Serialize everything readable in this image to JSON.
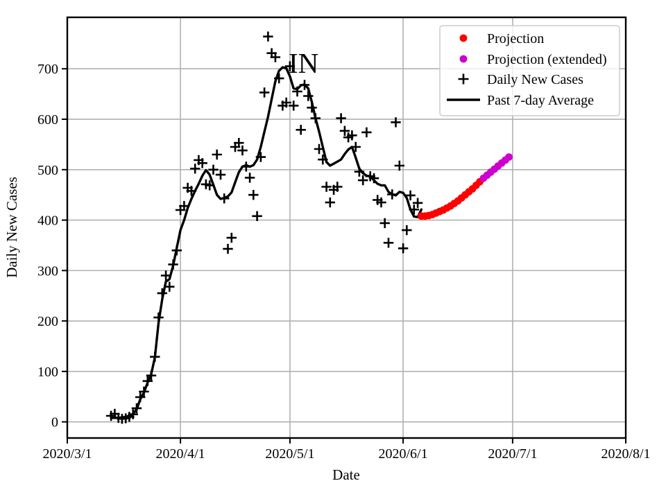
{
  "chart_data": {
    "type": "scatter",
    "annotation": {
      "text": "IN",
      "anchor_date": "2020/5/1",
      "anchor_value": 710
    },
    "xlabel": "Date",
    "ylabel": "Daily New Cases",
    "x_tick_labels": [
      "2020/3/1",
      "2020/4/1",
      "2020/5/1",
      "2020/6/1",
      "2020/7/1",
      "2020/8/1"
    ],
    "y_tick_labels": [
      "0",
      "100",
      "200",
      "300",
      "400",
      "500",
      "600",
      "700"
    ],
    "y_ticks": [
      0,
      100,
      200,
      300,
      400,
      500,
      600,
      700
    ],
    "xlim": [
      "2020/3/1",
      "2020/8/1"
    ],
    "ylim": [
      -32,
      802
    ],
    "grid": true,
    "grid_color": "#b0b0b0",
    "legend_position": "upper right",
    "series": [
      {
        "name": "Projection",
        "marker": "dot",
        "color": "#ff0000",
        "points": [
          [
            "2020/6/6",
            408
          ],
          [
            "2020/6/7",
            408
          ],
          [
            "2020/6/8",
            409
          ],
          [
            "2020/6/9",
            411
          ],
          [
            "2020/6/10",
            414
          ],
          [
            "2020/6/11",
            417
          ],
          [
            "2020/6/12",
            420
          ],
          [
            "2020/6/13",
            424
          ],
          [
            "2020/6/14",
            428
          ],
          [
            "2020/6/15",
            433
          ],
          [
            "2020/6/16",
            438
          ],
          [
            "2020/6/17",
            444
          ],
          [
            "2020/6/18",
            450
          ],
          [
            "2020/6/19",
            456
          ],
          [
            "2020/6/20",
            462
          ],
          [
            "2020/6/21",
            469
          ],
          [
            "2020/6/22",
            476
          ]
        ]
      },
      {
        "name": "Projection (extended)",
        "marker": "dot",
        "color": "#cc00cc",
        "points": [
          [
            "2020/6/23",
            483
          ],
          [
            "2020/6/24",
            489
          ],
          [
            "2020/6/25",
            495
          ],
          [
            "2020/6/26",
            501
          ],
          [
            "2020/6/27",
            507
          ],
          [
            "2020/6/28",
            513
          ],
          [
            "2020/6/29",
            519
          ],
          [
            "2020/6/30",
            525
          ]
        ]
      },
      {
        "name": "Daily New Cases",
        "marker": "plus",
        "color": "#000000",
        "points": [
          [
            "2020/3/13",
            12
          ],
          [
            "2020/3/14",
            16
          ],
          [
            "2020/3/15",
            8
          ],
          [
            "2020/3/16",
            6
          ],
          [
            "2020/3/17",
            7
          ],
          [
            "2020/3/18",
            10
          ],
          [
            "2020/3/19",
            15
          ],
          [
            "2020/3/20",
            27
          ],
          [
            "2020/3/21",
            49
          ],
          [
            "2020/3/22",
            60
          ],
          [
            "2020/3/23",
            81
          ],
          [
            "2020/3/24",
            92
          ],
          [
            "2020/3/25",
            129
          ],
          [
            "2020/3/26",
            207
          ],
          [
            "2020/3/27",
            255
          ],
          [
            "2020/3/28",
            290
          ],
          [
            "2020/3/29",
            268
          ],
          [
            "2020/3/30",
            312
          ],
          [
            "2020/3/31",
            340
          ],
          [
            "2020/4/1",
            420
          ],
          [
            "2020/4/2",
            428
          ],
          [
            "2020/4/3",
            464
          ],
          [
            "2020/4/4",
            458
          ],
          [
            "2020/4/5",
            502
          ],
          [
            "2020/4/6",
            519
          ],
          [
            "2020/4/7",
            513
          ],
          [
            "2020/4/8",
            471
          ],
          [
            "2020/4/9",
            469
          ],
          [
            "2020/4/10",
            500
          ],
          [
            "2020/4/11",
            530
          ],
          [
            "2020/4/12",
            490
          ],
          [
            "2020/4/13",
            443
          ],
          [
            "2020/4/14",
            343
          ],
          [
            "2020/4/15",
            365
          ],
          [
            "2020/4/16",
            545
          ],
          [
            "2020/4/17",
            553
          ],
          [
            "2020/4/18",
            538
          ],
          [
            "2020/4/19",
            506
          ],
          [
            "2020/4/20",
            484
          ],
          [
            "2020/4/21",
            450
          ],
          [
            "2020/4/22",
            408
          ],
          [
            "2020/4/23",
            525
          ],
          [
            "2020/4/24",
            653
          ],
          [
            "2020/4/25",
            764
          ],
          [
            "2020/4/26",
            731
          ],
          [
            "2020/4/27",
            723
          ],
          [
            "2020/4/28",
            681
          ],
          [
            "2020/4/29",
            627
          ],
          [
            "2020/4/30",
            633
          ],
          [
            "2020/5/1",
            705
          ],
          [
            "2020/5/2",
            627
          ],
          [
            "2020/5/3",
            655
          ],
          [
            "2020/5/4",
            579
          ],
          [
            "2020/5/5",
            668
          ],
          [
            "2020/5/6",
            646
          ],
          [
            "2020/5/7",
            623
          ],
          [
            "2020/5/8",
            602
          ],
          [
            "2020/5/9",
            541
          ],
          [
            "2020/5/10",
            520
          ],
          [
            "2020/5/11",
            466
          ],
          [
            "2020/5/12",
            435
          ],
          [
            "2020/5/13",
            460
          ],
          [
            "2020/5/14",
            466
          ],
          [
            "2020/5/15",
            602
          ],
          [
            "2020/5/16",
            577
          ],
          [
            "2020/5/17",
            564
          ],
          [
            "2020/5/18",
            568
          ],
          [
            "2020/5/19",
            545
          ],
          [
            "2020/5/20",
            496
          ],
          [
            "2020/5/21",
            479
          ],
          [
            "2020/5/22",
            574
          ],
          [
            "2020/5/23",
            487
          ],
          [
            "2020/5/24",
            483
          ],
          [
            "2020/5/25",
            440
          ],
          [
            "2020/5/26",
            435
          ],
          [
            "2020/5/27",
            394
          ],
          [
            "2020/5/28",
            355
          ],
          [
            "2020/5/29",
            451
          ],
          [
            "2020/5/30",
            594
          ],
          [
            "2020/5/31",
            508
          ],
          [
            "2020/6/1",
            344
          ],
          [
            "2020/6/2",
            380
          ],
          [
            "2020/6/3",
            449
          ],
          [
            "2020/6/4",
            421
          ],
          [
            "2020/6/5",
            434
          ]
        ]
      },
      {
        "name": "Past 7-day Average",
        "marker": "line",
        "color": "#000000",
        "points": [
          [
            "2020/3/13",
            8
          ],
          [
            "2020/3/14",
            8
          ],
          [
            "2020/3/15",
            8
          ],
          [
            "2020/3/16",
            9
          ],
          [
            "2020/3/17",
            10
          ],
          [
            "2020/3/18",
            12
          ],
          [
            "2020/3/19",
            16
          ],
          [
            "2020/3/20",
            25
          ],
          [
            "2020/3/21",
            45
          ],
          [
            "2020/3/22",
            58
          ],
          [
            "2020/3/23",
            78
          ],
          [
            "2020/3/24",
            95
          ],
          [
            "2020/3/25",
            128
          ],
          [
            "2020/3/26",
            196
          ],
          [
            "2020/3/27",
            243
          ],
          [
            "2020/3/28",
            278
          ],
          [
            "2020/3/29",
            283
          ],
          [
            "2020/3/30",
            310
          ],
          [
            "2020/3/31",
            345
          ],
          [
            "2020/4/1",
            380
          ],
          [
            "2020/4/2",
            400
          ],
          [
            "2020/4/3",
            424
          ],
          [
            "2020/4/4",
            442
          ],
          [
            "2020/4/5",
            458
          ],
          [
            "2020/4/6",
            472
          ],
          [
            "2020/4/7",
            488
          ],
          [
            "2020/4/8",
            499
          ],
          [
            "2020/4/9",
            490
          ],
          [
            "2020/4/10",
            470
          ],
          [
            "2020/4/11",
            450
          ],
          [
            "2020/4/12",
            442
          ],
          [
            "2020/4/13",
            444
          ],
          [
            "2020/4/14",
            447
          ],
          [
            "2020/4/15",
            455
          ],
          [
            "2020/4/16",
            475
          ],
          [
            "2020/4/17",
            495
          ],
          [
            "2020/4/18",
            506
          ],
          [
            "2020/4/19",
            509
          ],
          [
            "2020/4/20",
            506
          ],
          [
            "2020/4/21",
            509
          ],
          [
            "2020/4/22",
            520
          ],
          [
            "2020/4/23",
            545
          ],
          [
            "2020/4/24",
            575
          ],
          [
            "2020/4/25",
            605
          ],
          [
            "2020/4/26",
            640
          ],
          [
            "2020/4/27",
            675
          ],
          [
            "2020/4/28",
            696
          ],
          [
            "2020/4/29",
            703
          ],
          [
            "2020/4/30",
            701
          ],
          [
            "2020/5/1",
            685
          ],
          [
            "2020/5/2",
            661
          ],
          [
            "2020/5/3",
            660
          ],
          [
            "2020/5/4",
            667
          ],
          [
            "2020/5/5",
            669
          ],
          [
            "2020/5/6",
            661
          ],
          [
            "2020/5/7",
            634
          ],
          [
            "2020/5/8",
            602
          ],
          [
            "2020/5/9",
            575
          ],
          [
            "2020/5/10",
            545
          ],
          [
            "2020/5/11",
            515
          ],
          [
            "2020/5/12",
            508
          ],
          [
            "2020/5/13",
            512
          ],
          [
            "2020/5/14",
            516
          ],
          [
            "2020/5/15",
            520
          ],
          [
            "2020/5/16",
            531
          ],
          [
            "2020/5/17",
            540
          ],
          [
            "2020/5/18",
            545
          ],
          [
            "2020/5/19",
            524
          ],
          [
            "2020/5/20",
            502
          ],
          [
            "2020/5/21",
            493
          ],
          [
            "2020/5/22",
            488
          ],
          [
            "2020/5/23",
            487
          ],
          [
            "2020/5/24",
            479
          ],
          [
            "2020/5/25",
            472
          ],
          [
            "2020/5/26",
            469
          ],
          [
            "2020/5/27",
            469
          ],
          [
            "2020/5/28",
            456
          ],
          [
            "2020/5/29",
            451
          ],
          [
            "2020/5/30",
            449
          ],
          [
            "2020/5/31",
            456
          ],
          [
            "2020/6/1",
            454
          ],
          [
            "2020/6/2",
            444
          ],
          [
            "2020/6/3",
            421
          ],
          [
            "2020/6/4",
            407
          ],
          [
            "2020/6/5",
            406
          ],
          [
            "2020/6/6",
            421
          ]
        ]
      }
    ]
  }
}
